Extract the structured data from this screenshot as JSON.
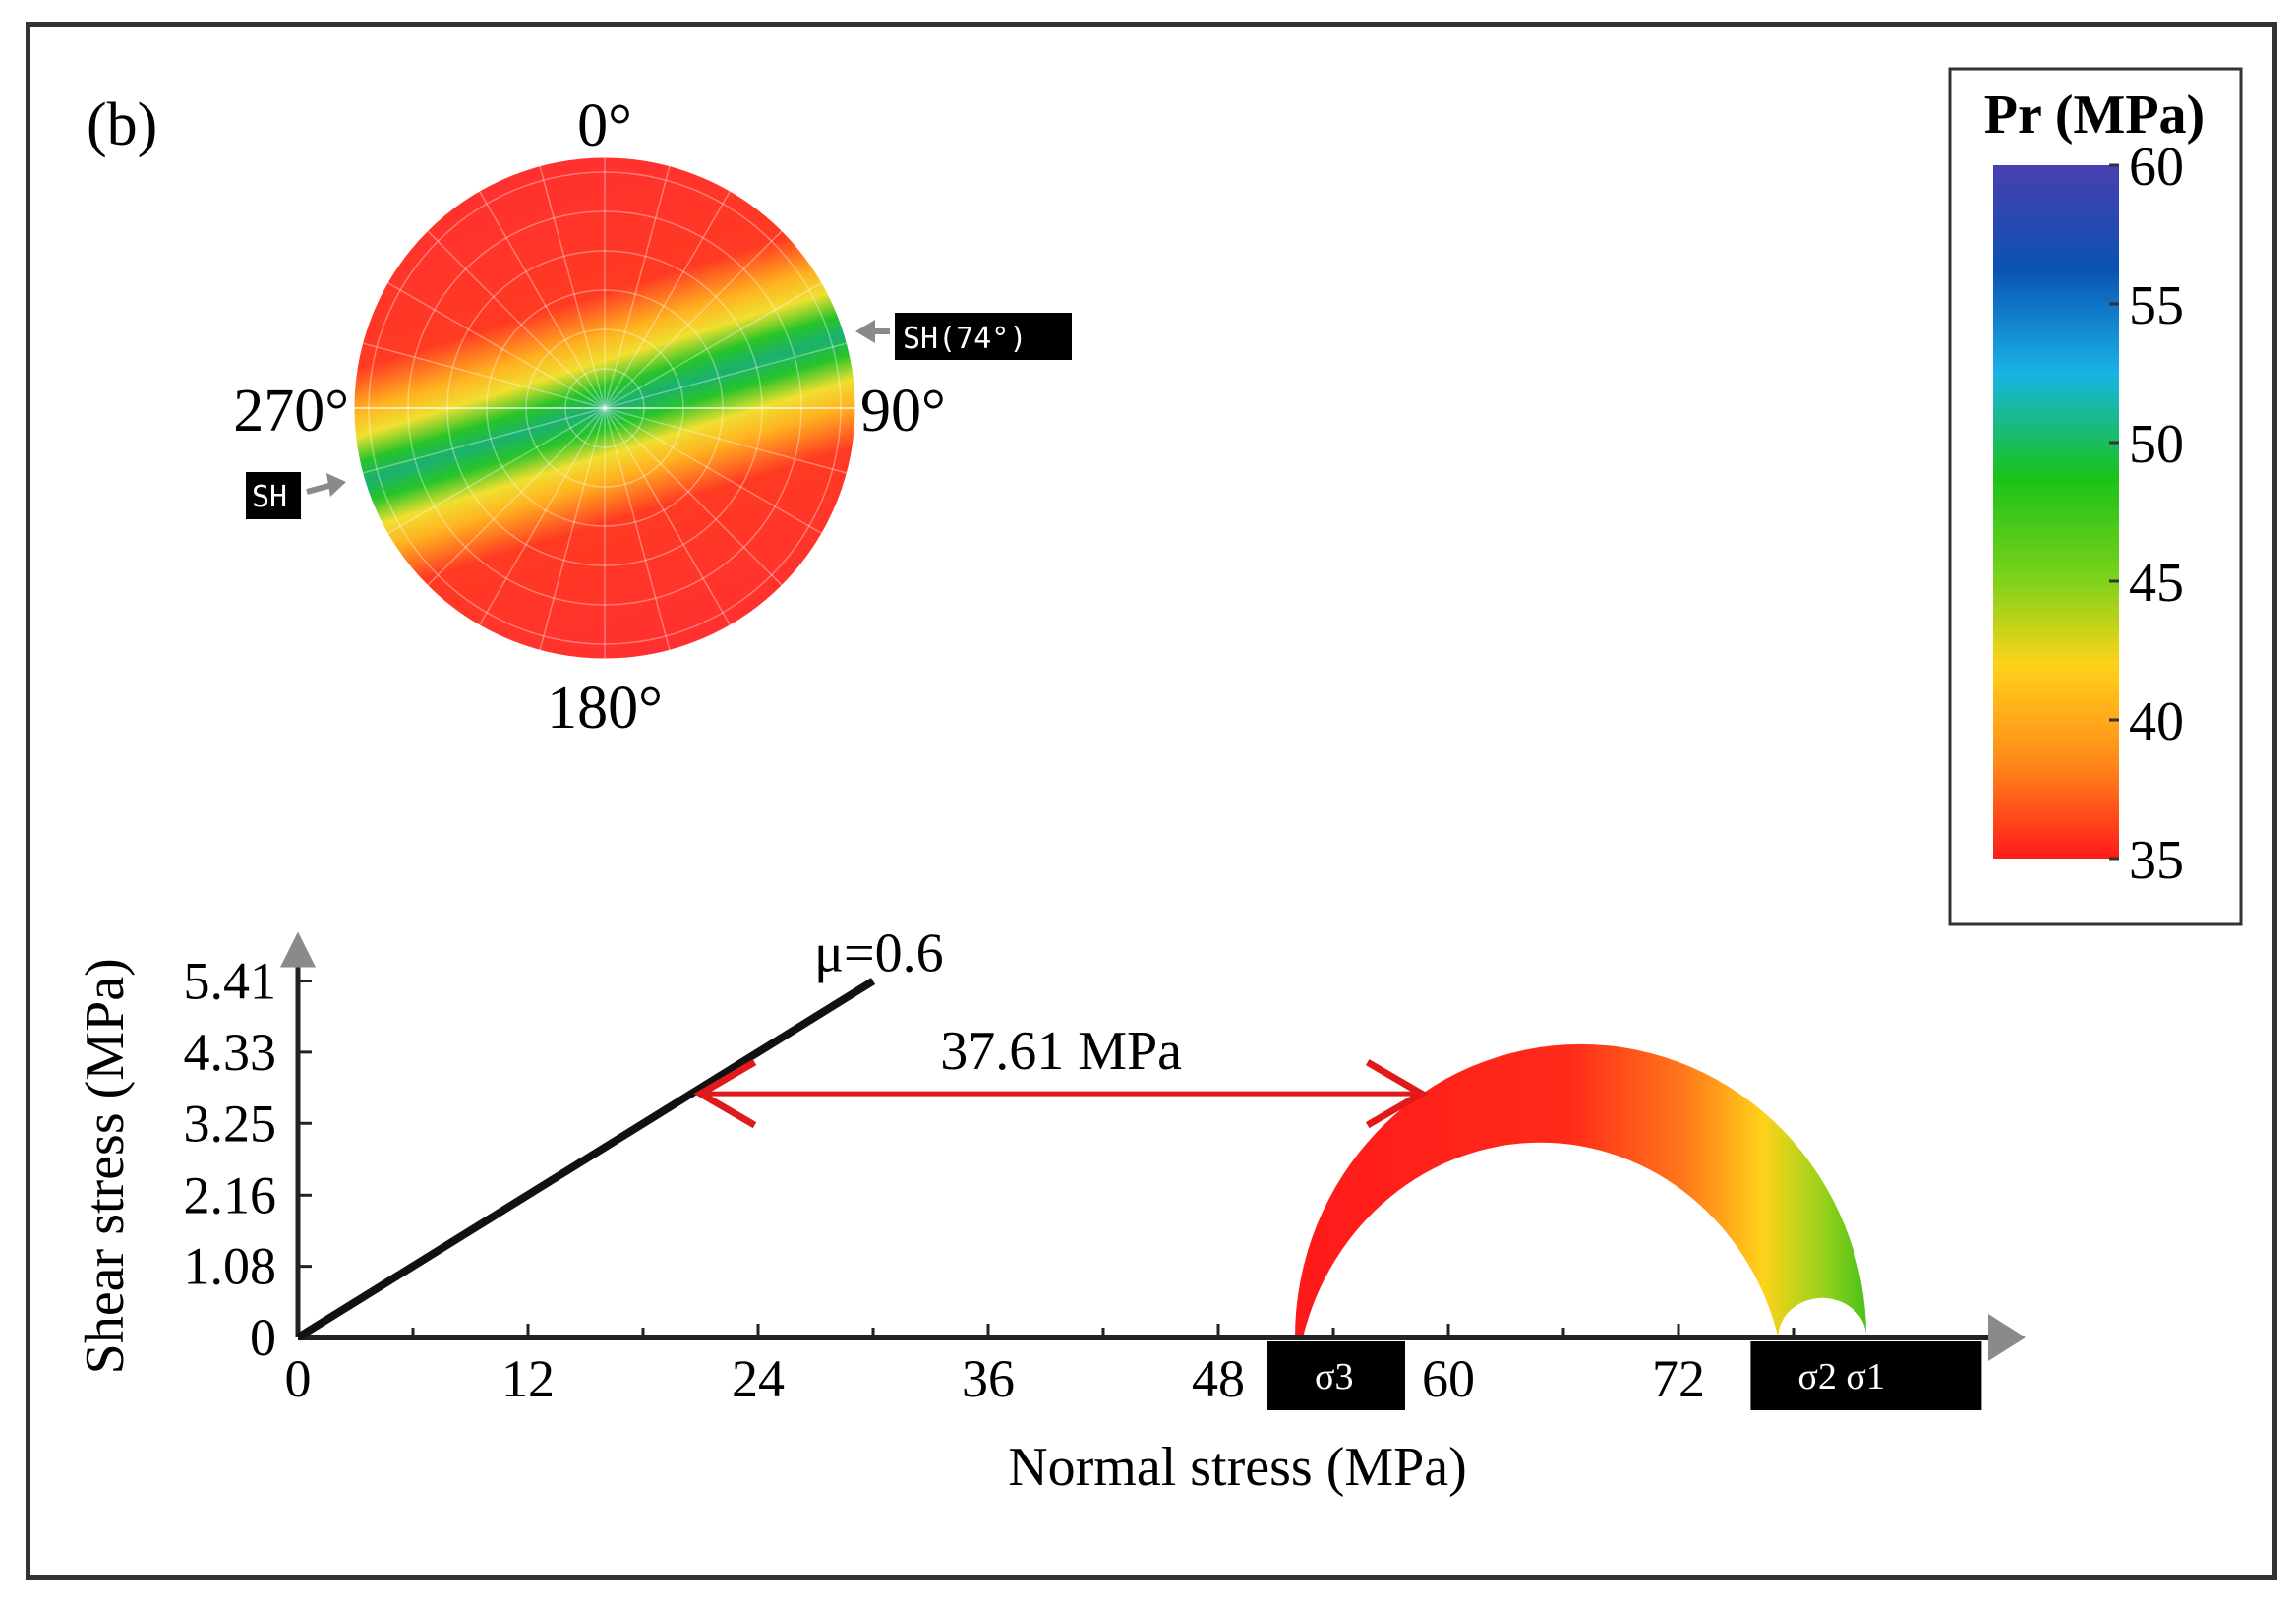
{
  "panel_label": "(b)",
  "stereonet": {
    "north": "0°",
    "east": "90°",
    "south": "180°",
    "west": "270°",
    "sh_label": "SH",
    "sh_max_label": "SH(74°)"
  },
  "colorbar": {
    "title": "Pr (MPa)",
    "ticks": [
      "60",
      "55",
      "50",
      "45",
      "40",
      "35"
    ],
    "min": 35,
    "max": 60,
    "colors": [
      "#ff1a1a",
      "#ff8a1a",
      "#ffd21a",
      "#7fd21a",
      "#19c219",
      "#19b3e6",
      "#0a52b3",
      "#4a3fb0"
    ]
  },
  "chart_data": {
    "type": "mohr-coulomb",
    "xlabel": "Normal stress (MPa)",
    "ylabel": "Shear stress (MPa)",
    "xticks": [
      "0",
      "12",
      "24",
      "36",
      "48",
      "60",
      "72"
    ],
    "yticks": [
      "0",
      "1.08",
      "2.16",
      "3.25",
      "4.33",
      "5.41"
    ],
    "xlim": [
      0,
      90
    ],
    "ylim": [
      0,
      5.41
    ],
    "failure_line": {
      "label": "μ=0.6",
      "from": [
        0,
        0
      ],
      "to": [
        30,
        5.41
      ]
    },
    "distance_annotation": {
      "label": "37.61 MPa",
      "from_x": 21,
      "to_x": 58.6,
      "y": 3.7
    },
    "sigma3": 52.0,
    "sigma2": 77.2,
    "sigma1": 81.8,
    "sigma_labels": {
      "s3": "σ3",
      "s21": "σ2 σ1"
    }
  }
}
